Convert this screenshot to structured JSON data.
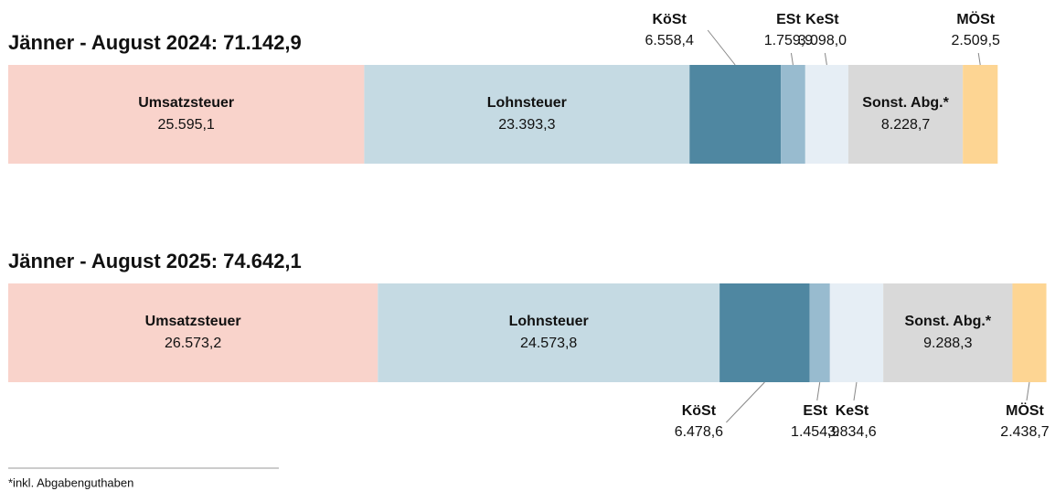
{
  "chart_data": [
    {
      "type": "stacked_bar",
      "title": "Jänner - August 2024: 71.142,9",
      "xlim": [
        0,
        75000
      ],
      "outside_labels": "above",
      "series": [
        {
          "name": "Umsatzsteuer",
          "color": "#f9d3cb",
          "values": [
            25595.1
          ],
          "value_labels": [
            "25.595,1"
          ]
        },
        {
          "name": "Lohnsteuer",
          "color": "#c5dae3",
          "values": [
            23393.3
          ],
          "value_labels": [
            "23.393,3"
          ]
        },
        {
          "name": "KöSt",
          "color": "#4f87a1",
          "values": [
            6558.4
          ],
          "value_labels": [
            "6.558,4"
          ]
        },
        {
          "name": "ESt",
          "color": "#98bbcf",
          "values": [
            1759.9
          ],
          "value_labels": [
            "1.759,9"
          ]
        },
        {
          "name": "KeSt",
          "color": "#e6eef5",
          "values": [
            3098.0
          ],
          "value_labels": [
            "3.098,0"
          ]
        },
        {
          "name": "Sonst. Abg.*",
          "color": "#d9d9d9",
          "values": [
            8228.7
          ],
          "value_labels": [
            "8.228,7"
          ]
        },
        {
          "name": "MÖSt",
          "color": "#fdd593",
          "values": [
            2509.5
          ],
          "value_labels": [
            "2.509,5"
          ]
        }
      ]
    },
    {
      "type": "stacked_bar",
      "title": "Jänner - August 2025: 74.642,1",
      "xlim": [
        0,
        75000
      ],
      "outside_labels": "below",
      "series": [
        {
          "name": "Umsatzsteuer",
          "color": "#f9d3cb",
          "values": [
            26573.2
          ],
          "value_labels": [
            "26.573,2"
          ]
        },
        {
          "name": "Lohnsteuer",
          "color": "#c5dae3",
          "values": [
            24573.8
          ],
          "value_labels": [
            "24.573,8"
          ]
        },
        {
          "name": "KöSt",
          "color": "#4f87a1",
          "values": [
            6478.6
          ],
          "value_labels": [
            "6.478,6"
          ]
        },
        {
          "name": "ESt",
          "color": "#98bbcf",
          "values": [
            1454.9
          ],
          "value_labels": [
            "1.454,9"
          ]
        },
        {
          "name": "KeSt",
          "color": "#e6eef5",
          "values": [
            3834.6
          ],
          "value_labels": [
            "3.834,6"
          ]
        },
        {
          "name": "Sonst. Abg.*",
          "color": "#d9d9d9",
          "values": [
            9288.3
          ],
          "value_labels": [
            "9.288,3"
          ]
        },
        {
          "name": "MÖSt",
          "color": "#fdd593",
          "values": [
            2438.7
          ],
          "value_labels": [
            "2.438,7"
          ]
        }
      ]
    }
  ],
  "footnote": "*inkl. Abgabenguthaben"
}
